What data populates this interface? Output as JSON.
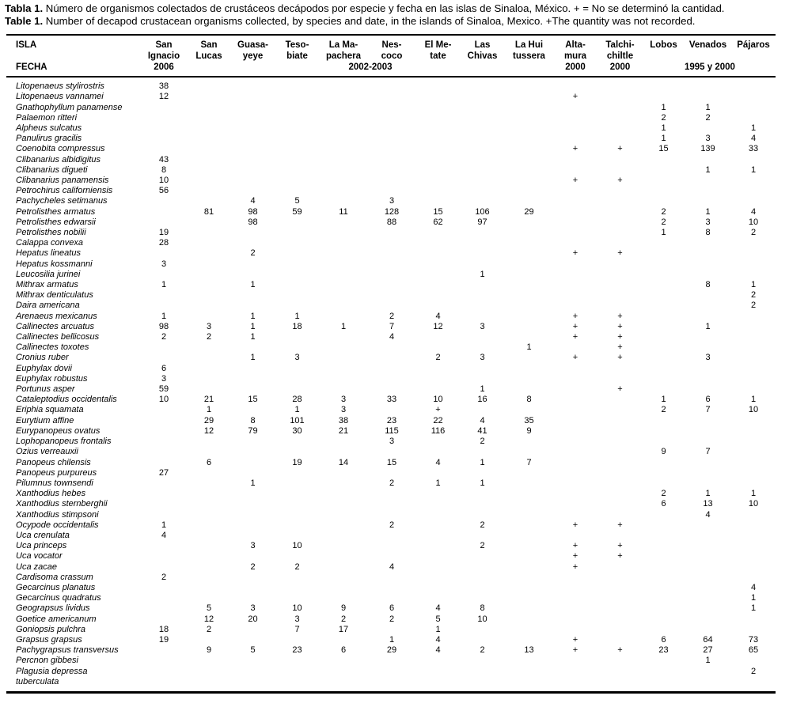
{
  "caption_es": {
    "label": "Tabla 1.",
    "text": " Número de organismos colectados de crustáceos decápodos por especie y fecha en las islas de Sinaloa, México. + = No se determinó la cantidad."
  },
  "caption_en": {
    "label": "Table 1.",
    "text": " Number of decapod crustacean organisms collected, by species and date, in the islands of Sinaloa, Mexico. +The quantity was not recorded."
  },
  "table": {
    "row_header": {
      "line1": "ISLA",
      "line3": "FECHA"
    },
    "columns": [
      {
        "id": "san-ignacio",
        "lines": [
          "San",
          "Ignacio",
          "2006"
        ]
      },
      {
        "id": "san-lucas",
        "lines": [
          "San",
          "Lucas",
          ""
        ]
      },
      {
        "id": "guasayeye",
        "lines": [
          "Guasa-",
          "yeye",
          ""
        ]
      },
      {
        "id": "tesobiate",
        "lines": [
          "Teso-",
          "biate",
          ""
        ]
      },
      {
        "id": "la-mapachera",
        "lines": [
          "La Ma-",
          "pachera",
          "2002-2003"
        ]
      },
      {
        "id": "nescoco",
        "lines": [
          "Nes-",
          "coco",
          ""
        ]
      },
      {
        "id": "el-metate",
        "lines": [
          "El Me-",
          "tate",
          ""
        ]
      },
      {
        "id": "las-chivas",
        "lines": [
          "Las",
          "Chivas",
          ""
        ]
      },
      {
        "id": "la-huitussera",
        "lines": [
          "La Hui",
          "tussera",
          ""
        ]
      },
      {
        "id": "altamura",
        "lines": [
          "Alta-",
          "mura",
          "2000"
        ]
      },
      {
        "id": "talchichiltle",
        "lines": [
          "Talchi-",
          "chiltle",
          "2000"
        ]
      },
      {
        "id": "lobos",
        "lines": [
          "Lobos",
          "",
          ""
        ]
      },
      {
        "id": "venados",
        "lines": [
          "Venados",
          "",
          "1995 y 2000"
        ]
      },
      {
        "id": "pajaros",
        "lines": [
          "Pájaros",
          "",
          ""
        ]
      }
    ],
    "rows": [
      {
        "species": "Litopenaeus stylirostris",
        "values": [
          "38",
          "",
          "",
          "",
          "",
          "",
          "",
          "",
          "",
          "",
          "",
          "",
          "",
          ""
        ]
      },
      {
        "species": "Litopenaeus vannamei",
        "values": [
          "12",
          "",
          "",
          "",
          "",
          "",
          "",
          "",
          "",
          "+",
          "",
          "",
          "",
          ""
        ]
      },
      {
        "species": "Gnathophyllum panamense",
        "values": [
          "",
          "",
          "",
          "",
          "",
          "",
          "",
          "",
          "",
          "",
          "",
          "1",
          "1",
          ""
        ]
      },
      {
        "species": "Palaemon ritteri",
        "values": [
          "",
          "",
          "",
          "",
          "",
          "",
          "",
          "",
          "",
          "",
          "",
          "2",
          "2",
          ""
        ]
      },
      {
        "species": "Alpheus sulcatus",
        "values": [
          "",
          "",
          "",
          "",
          "",
          "",
          "",
          "",
          "",
          "",
          "",
          "1",
          "",
          "1"
        ]
      },
      {
        "species": "Panulirus gracilis",
        "values": [
          "",
          "",
          "",
          "",
          "",
          "",
          "",
          "",
          "",
          "",
          "",
          "1",
          "3",
          "4"
        ]
      },
      {
        "species": "Coenobita compressus",
        "values": [
          "",
          "",
          "",
          "",
          "",
          "",
          "",
          "",
          "",
          "+",
          "+",
          "15",
          "139",
          "33"
        ]
      },
      {
        "species": "Clibanarius albidigitus",
        "values": [
          "43",
          "",
          "",
          "",
          "",
          "",
          "",
          "",
          "",
          "",
          "",
          "",
          "",
          ""
        ]
      },
      {
        "species": "Clibanarius digueti",
        "values": [
          "8",
          "",
          "",
          "",
          "",
          "",
          "",
          "",
          "",
          "",
          "",
          "",
          "1",
          "1"
        ]
      },
      {
        "species": "Clibanarius panamensis",
        "values": [
          "10",
          "",
          "",
          "",
          "",
          "",
          "",
          "",
          "",
          "+",
          "+",
          "",
          "",
          ""
        ]
      },
      {
        "species": "Petrochirus californiensis",
        "values": [
          "56",
          "",
          "",
          "",
          "",
          "",
          "",
          "",
          "",
          "",
          "",
          "",
          "",
          ""
        ]
      },
      {
        "species": "Pachycheles setimanus",
        "values": [
          "",
          "",
          "4",
          "5",
          "",
          "3",
          "",
          "",
          "",
          "",
          "",
          "",
          "",
          ""
        ]
      },
      {
        "species": "Petrolisthes armatus",
        "values": [
          "",
          "81",
          "98",
          "59",
          "11",
          "128",
          "15",
          "106",
          "29",
          "",
          "",
          "2",
          "1",
          "4"
        ]
      },
      {
        "species": "Petrolisthes edwarsii",
        "values": [
          "",
          "",
          "98",
          "",
          "",
          "88",
          "62",
          "97",
          "",
          "",
          "",
          "2",
          "3",
          "10"
        ]
      },
      {
        "species": "Petrolisthes nobilii",
        "values": [
          "19",
          "",
          "",
          "",
          "",
          "",
          "",
          "",
          "",
          "",
          "",
          "1",
          "8",
          "2"
        ]
      },
      {
        "species": "Calappa convexa",
        "values": [
          "28",
          "",
          "",
          "",
          "",
          "",
          "",
          "",
          "",
          "",
          "",
          "",
          "",
          ""
        ]
      },
      {
        "species": "Hepatus lineatus",
        "values": [
          "",
          "",
          "2",
          "",
          "",
          "",
          "",
          "",
          "",
          "+",
          "+",
          "",
          "",
          ""
        ]
      },
      {
        "species": "Hepatus kossmanni",
        "values": [
          "3",
          "",
          "",
          "",
          "",
          "",
          "",
          "",
          "",
          "",
          "",
          "",
          "",
          ""
        ]
      },
      {
        "species": "Leucosilia jurinei",
        "values": [
          "",
          "",
          "",
          "",
          "",
          "",
          "",
          "1",
          "",
          "",
          "",
          "",
          "",
          ""
        ]
      },
      {
        "species": "Mithrax armatus",
        "values": [
          "1",
          "",
          "1",
          "",
          "",
          "",
          "",
          "",
          "",
          "",
          "",
          "",
          "8",
          "1"
        ]
      },
      {
        "species": "Mithrax denticulatus",
        "values": [
          "",
          "",
          "",
          "",
          "",
          "",
          "",
          "",
          "",
          "",
          "",
          "",
          "",
          "2"
        ]
      },
      {
        "species": "Daira americana",
        "values": [
          "",
          "",
          "",
          "",
          "",
          "",
          "",
          "",
          "",
          "",
          "",
          "",
          "",
          "2"
        ]
      },
      {
        "species": "Arenaeus mexicanus",
        "values": [
          "1",
          "",
          "1",
          "1",
          "",
          "2",
          "4",
          "",
          "",
          "+",
          "+",
          "",
          "",
          ""
        ]
      },
      {
        "species": "Callinectes arcuatus",
        "values": [
          "98",
          "3",
          "1",
          "18",
          "1",
          "7",
          "12",
          "3",
          "",
          "+",
          "+",
          "",
          "1",
          ""
        ]
      },
      {
        "species": "Callinectes bellicosus",
        "values": [
          "2",
          "2",
          "1",
          "",
          "",
          "4",
          "",
          "",
          "",
          "+",
          "+",
          "",
          "",
          ""
        ]
      },
      {
        "species": "Callinectes toxotes",
        "values": [
          "",
          "",
          "",
          "",
          "",
          "",
          "",
          "",
          "1",
          "",
          "+",
          "",
          "",
          ""
        ]
      },
      {
        "species": "Cronius ruber",
        "values": [
          "",
          "",
          "1",
          "3",
          "",
          "",
          "2",
          "3",
          "",
          "+",
          "+",
          "",
          "3",
          ""
        ]
      },
      {
        "species": "Euphylax dovii",
        "values": [
          "6",
          "",
          "",
          "",
          "",
          "",
          "",
          "",
          "",
          "",
          "",
          "",
          "",
          ""
        ]
      },
      {
        "species": "Euphylax robustus",
        "values": [
          "3",
          "",
          "",
          "",
          "",
          "",
          "",
          "",
          "",
          "",
          "",
          "",
          "",
          ""
        ]
      },
      {
        "species": "Portunus asper",
        "values": [
          "59",
          "",
          "",
          "",
          "",
          "",
          "",
          "1",
          "",
          "",
          "+",
          "",
          "",
          ""
        ]
      },
      {
        "species": "Cataleptodius occidentalis",
        "values": [
          "10",
          "21",
          "15",
          "28",
          "3",
          "33",
          "10",
          "16",
          "8",
          "",
          "",
          "1",
          "6",
          "1"
        ]
      },
      {
        "species": "Eriphia squamata",
        "values": [
          "",
          "1",
          "",
          "1",
          "3",
          "",
          "+",
          "",
          "",
          "",
          "",
          "2",
          "7",
          "10"
        ]
      },
      {
        "species": "Eurytium affine",
        "values": [
          "",
          "29",
          "8",
          "101",
          "38",
          "23",
          "22",
          "4",
          "35",
          "",
          "",
          "",
          "",
          ""
        ]
      },
      {
        "species": "Eurypanopeus ovatus",
        "values": [
          "",
          "12",
          "79",
          "30",
          "21",
          "115",
          "116",
          "41",
          "9",
          "",
          "",
          "",
          "",
          ""
        ]
      },
      {
        "species": "Lophopanopeus frontalis",
        "values": [
          "",
          "",
          "",
          "",
          "",
          "3",
          "",
          "2",
          "",
          "",
          "",
          "",
          "",
          ""
        ]
      },
      {
        "species": "Ozius verreauxii",
        "values": [
          "",
          "",
          "",
          "",
          "",
          "",
          "",
          "",
          "",
          "",
          "",
          "9",
          "7",
          ""
        ]
      },
      {
        "species": "Panopeus chilensis",
        "values": [
          "",
          "6",
          "",
          "19",
          "14",
          "15",
          "4",
          "1",
          "7",
          "",
          "",
          "",
          "",
          ""
        ]
      },
      {
        "species": "Panopeus purpureus",
        "values": [
          "27",
          "",
          "",
          "",
          "",
          "",
          "",
          "",
          "",
          "",
          "",
          "",
          "",
          ""
        ]
      },
      {
        "species": "Pilumnus townsendi",
        "values": [
          "",
          "",
          "1",
          "",
          "",
          "2",
          "1",
          "1",
          "",
          "",
          "",
          "",
          "",
          ""
        ]
      },
      {
        "species": "Xanthodius hebes",
        "values": [
          "",
          "",
          "",
          "",
          "",
          "",
          "",
          "",
          "",
          "",
          "",
          "2",
          "1",
          "1"
        ]
      },
      {
        "species": "Xanthodius sternberghii",
        "values": [
          "",
          "",
          "",
          "",
          "",
          "",
          "",
          "",
          "",
          "",
          "",
          "6",
          "13",
          "10"
        ]
      },
      {
        "species": "Xanthodius stimpsoni",
        "values": [
          "",
          "",
          "",
          "",
          "",
          "",
          "",
          "",
          "",
          "",
          "",
          "",
          "4",
          ""
        ]
      },
      {
        "species": "Ocypode occidentalis",
        "values": [
          "1",
          "",
          "",
          "",
          "",
          "2",
          "",
          "2",
          "",
          "+",
          "+",
          "",
          "",
          ""
        ]
      },
      {
        "species": "Uca crenulata",
        "values": [
          "4",
          "",
          "",
          "",
          "",
          "",
          "",
          "",
          "",
          "",
          "",
          "",
          "",
          ""
        ]
      },
      {
        "species": "Uca princeps",
        "values": [
          "",
          "",
          "3",
          "10",
          "",
          "",
          "",
          "2",
          "",
          "+",
          "+",
          "",
          "",
          ""
        ]
      },
      {
        "species": "Uca vocator",
        "values": [
          "",
          "",
          "",
          "",
          "",
          "",
          "",
          "",
          "",
          "+",
          "+",
          "",
          "",
          ""
        ]
      },
      {
        "species": "Uca zacae",
        "values": [
          "",
          "",
          "2",
          "2",
          "",
          "4",
          "",
          "",
          "",
          "+",
          "",
          "",
          "",
          ""
        ]
      },
      {
        "species": "Cardisoma crassum",
        "values": [
          "2",
          "",
          "",
          "",
          "",
          "",
          "",
          "",
          "",
          "",
          "",
          "",
          "",
          ""
        ]
      },
      {
        "species": "Gecarcinus planatus",
        "values": [
          "",
          "",
          "",
          "",
          "",
          "",
          "",
          "",
          "",
          "",
          "",
          "",
          "",
          "4"
        ]
      },
      {
        "species": "Gecarcinus quadratus",
        "values": [
          "",
          "",
          "",
          "",
          "",
          "",
          "",
          "",
          "",
          "",
          "",
          "",
          "",
          "1"
        ]
      },
      {
        "species": "Geograpsus lividus",
        "values": [
          "",
          "5",
          "3",
          "10",
          "9",
          "6",
          "4",
          "8",
          "",
          "",
          "",
          "",
          "",
          "1"
        ]
      },
      {
        "species": "Goetice americanum",
        "values": [
          "",
          "12",
          "20",
          "3",
          "2",
          "2",
          "5",
          "10",
          "",
          "",
          "",
          "",
          "",
          ""
        ]
      },
      {
        "species": "Goniopsis pulchra",
        "values": [
          "18",
          "2",
          "",
          "7",
          "17",
          "",
          "1",
          "",
          "",
          "",
          "",
          "",
          "",
          ""
        ]
      },
      {
        "species": "Grapsus grapsus",
        "values": [
          "19",
          "",
          "",
          "",
          "",
          "1",
          "4",
          "",
          "",
          "+",
          "",
          "6",
          "64",
          "73"
        ]
      },
      {
        "species": "Pachygrapsus transversus",
        "values": [
          "",
          "9",
          "5",
          "23",
          "6",
          "29",
          "4",
          "2",
          "13",
          "+",
          "+",
          "23",
          "27",
          "65"
        ]
      },
      {
        "species": "Percnon gibbesi",
        "values": [
          "",
          "",
          "",
          "",
          "",
          "",
          "",
          "",
          "",
          "",
          "",
          "",
          "1",
          ""
        ]
      },
      {
        "species": "Plagusia depressa\ntuberculata",
        "values": [
          "",
          "",
          "",
          "",
          "",
          "",
          "",
          "",
          "",
          "",
          "",
          "",
          "",
          "2"
        ]
      }
    ]
  }
}
